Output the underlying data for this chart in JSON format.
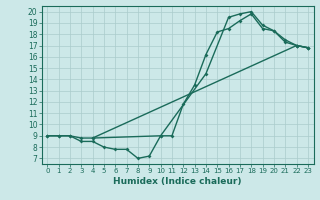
{
  "xlabel": "Humidex (Indice chaleur)",
  "ylabel": "",
  "bg_color": "#cce8e8",
  "grid_color": "#aacccc",
  "line_color": "#1a6b5a",
  "xlim": [
    -0.5,
    23.5
  ],
  "ylim": [
    6.5,
    20.5
  ],
  "xticks": [
    0,
    1,
    2,
    3,
    4,
    5,
    6,
    7,
    8,
    9,
    10,
    11,
    12,
    13,
    14,
    15,
    16,
    17,
    18,
    19,
    20,
    21,
    22,
    23
  ],
  "yticks": [
    7,
    8,
    9,
    10,
    11,
    12,
    13,
    14,
    15,
    16,
    17,
    18,
    19,
    20
  ],
  "line1_x": [
    0,
    1,
    2,
    3,
    4,
    5,
    6,
    7,
    8,
    9,
    10,
    11,
    12,
    13,
    14,
    15,
    16,
    17,
    18,
    19,
    20,
    21,
    22,
    23
  ],
  "line1_y": [
    9,
    9,
    9,
    8.5,
    8.5,
    8,
    7.8,
    7.8,
    7,
    7.2,
    9,
    9,
    11.8,
    13.5,
    16.2,
    18.2,
    18.5,
    19.2,
    19.8,
    18.5,
    18.3,
    17.3,
    17,
    16.8
  ],
  "line2_x": [
    0,
    1,
    2,
    3,
    4,
    22,
    23
  ],
  "line2_y": [
    9,
    9,
    9,
    8.8,
    8.8,
    17,
    16.8
  ],
  "line3_x": [
    4,
    10,
    14,
    16,
    17,
    18,
    19,
    20,
    21,
    22,
    23
  ],
  "line3_y": [
    8.8,
    9,
    14.5,
    19.5,
    19.8,
    20,
    18.8,
    18.3,
    17.5,
    17,
    16.8
  ]
}
